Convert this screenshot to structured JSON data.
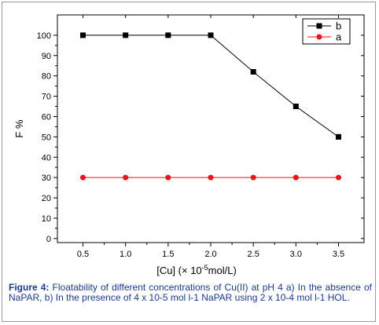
{
  "chart_data": {
    "type": "line",
    "title": "",
    "xlabel": "[Cu] (× 10",
    "xlabel_sup": "-5",
    "xlabel_tail": "mol/L)",
    "ylabel": "F %",
    "x": [
      0.5,
      1.0,
      1.5,
      2.0,
      2.5,
      3.0,
      3.5
    ],
    "x_tick_labels": [
      "0.5",
      "1.0",
      "1.5",
      "2.0",
      "2.5",
      "3.0",
      "3.5"
    ],
    "y_tick_labels": [
      "0",
      "10",
      "20",
      "30",
      "40",
      "50",
      "60",
      "70",
      "80",
      "90",
      "100"
    ],
    "xlim": [
      0.2,
      3.8
    ],
    "ylim": [
      -2,
      110
    ],
    "grid": false,
    "legend_position": "top-right",
    "series": [
      {
        "name": "b",
        "values": [
          100,
          100,
          100,
          100,
          82,
          65,
          50
        ],
        "color": "#000000",
        "marker": "square"
      },
      {
        "name": "a",
        "values": [
          30,
          30,
          30,
          30,
          30,
          30,
          30
        ],
        "color": "#e8141a",
        "marker": "circle"
      }
    ]
  },
  "caption": {
    "label": "Figure 4:",
    "text": " Floatability of different concentrations of Cu(II) at pH 4 a) In the absence of NaPAR, b) In the presence of 4 x 10-5 mol l-1 NaPAR using 2 x 10-4 mol l-1 HOL."
  }
}
